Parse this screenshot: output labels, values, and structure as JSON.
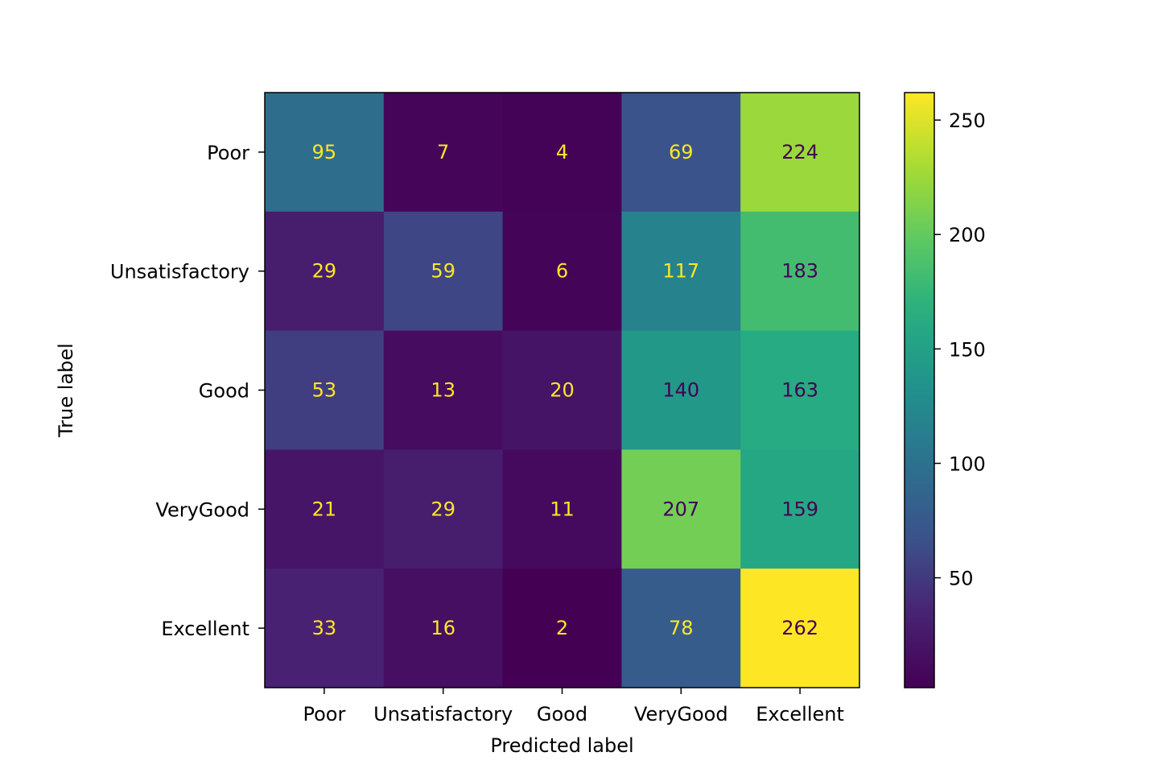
{
  "chart_data": {
    "type": "heatmap",
    "title": "",
    "xlabel": "Predicted label",
    "ylabel": "True label",
    "x_categories": [
      "Poor",
      "Unsatisfactory",
      "Good",
      "VeryGood",
      "Excellent"
    ],
    "y_categories": [
      "Poor",
      "Unsatisfactory",
      "Good",
      "VeryGood",
      "Excellent"
    ],
    "values": [
      [
        95,
        7,
        4,
        69,
        224
      ],
      [
        29,
        59,
        6,
        117,
        183
      ],
      [
        53,
        13,
        20,
        140,
        163
      ],
      [
        21,
        29,
        11,
        207,
        159
      ],
      [
        33,
        16,
        2,
        78,
        262
      ]
    ],
    "colormap": "viridis",
    "vmin": 2,
    "vmax": 262,
    "colorbar": {
      "ticks": [
        50,
        100,
        150,
        200,
        250
      ],
      "tick_labels": [
        "50",
        "100",
        "150",
        "200",
        "250"
      ]
    },
    "text_colors": {
      "low": "#fde725",
      "high": "#440154"
    },
    "grid": false
  }
}
